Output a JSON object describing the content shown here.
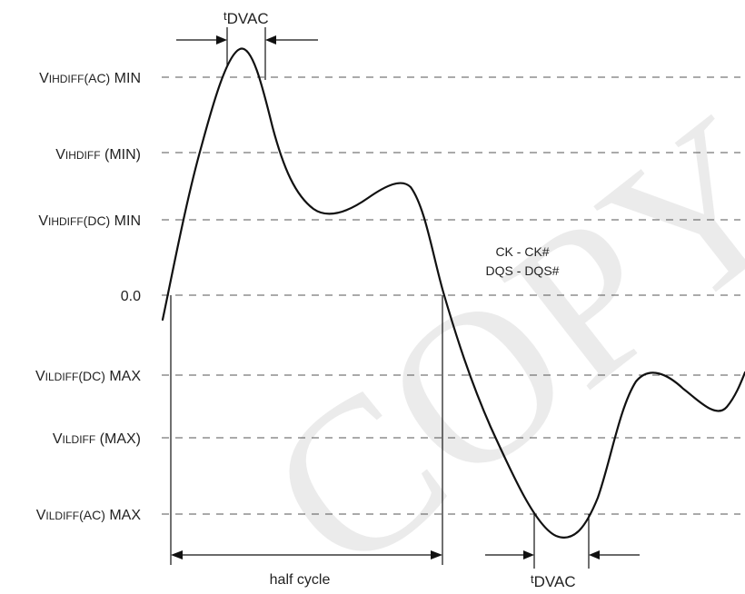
{
  "levels": [
    {
      "key": "vihdiff_ac_min",
      "main": "V",
      "sub": "IHDIFF",
      "small": "(AC)",
      "suffix": " MIN"
    },
    {
      "key": "vihdiff_min",
      "main": "V",
      "sub": "IHDIFF",
      "small": "",
      "suffix": " (MIN)"
    },
    {
      "key": "vihdiff_dc_min",
      "main": "V",
      "sub": "IHDIFF",
      "small": "(DC)",
      "suffix": " MIN"
    },
    {
      "key": "zero",
      "main": "0.0",
      "sub": "",
      "small": "",
      "suffix": ""
    },
    {
      "key": "vildiff_dc_max",
      "main": "V",
      "sub": "ILDIFF",
      "small": "(DC)",
      "suffix": " MAX"
    },
    {
      "key": "vildiff_max",
      "main": "V",
      "sub": "ILDIFF",
      "small": "",
      "suffix": " (MAX)"
    },
    {
      "key": "vildiff_ac_max",
      "main": "V",
      "sub": "ILDIFF",
      "small": "(AC)",
      "suffix": " MAX"
    }
  ],
  "signal_labels": {
    "line1": "CK - CK#",
    "line2": "DQS - DQS#"
  },
  "timing": {
    "top_t": "t",
    "top_sub": "DVAC",
    "bottom_t": "t",
    "bottom_sub": "DVAC",
    "half_cycle": "half cycle"
  },
  "watermark": "COPY"
}
